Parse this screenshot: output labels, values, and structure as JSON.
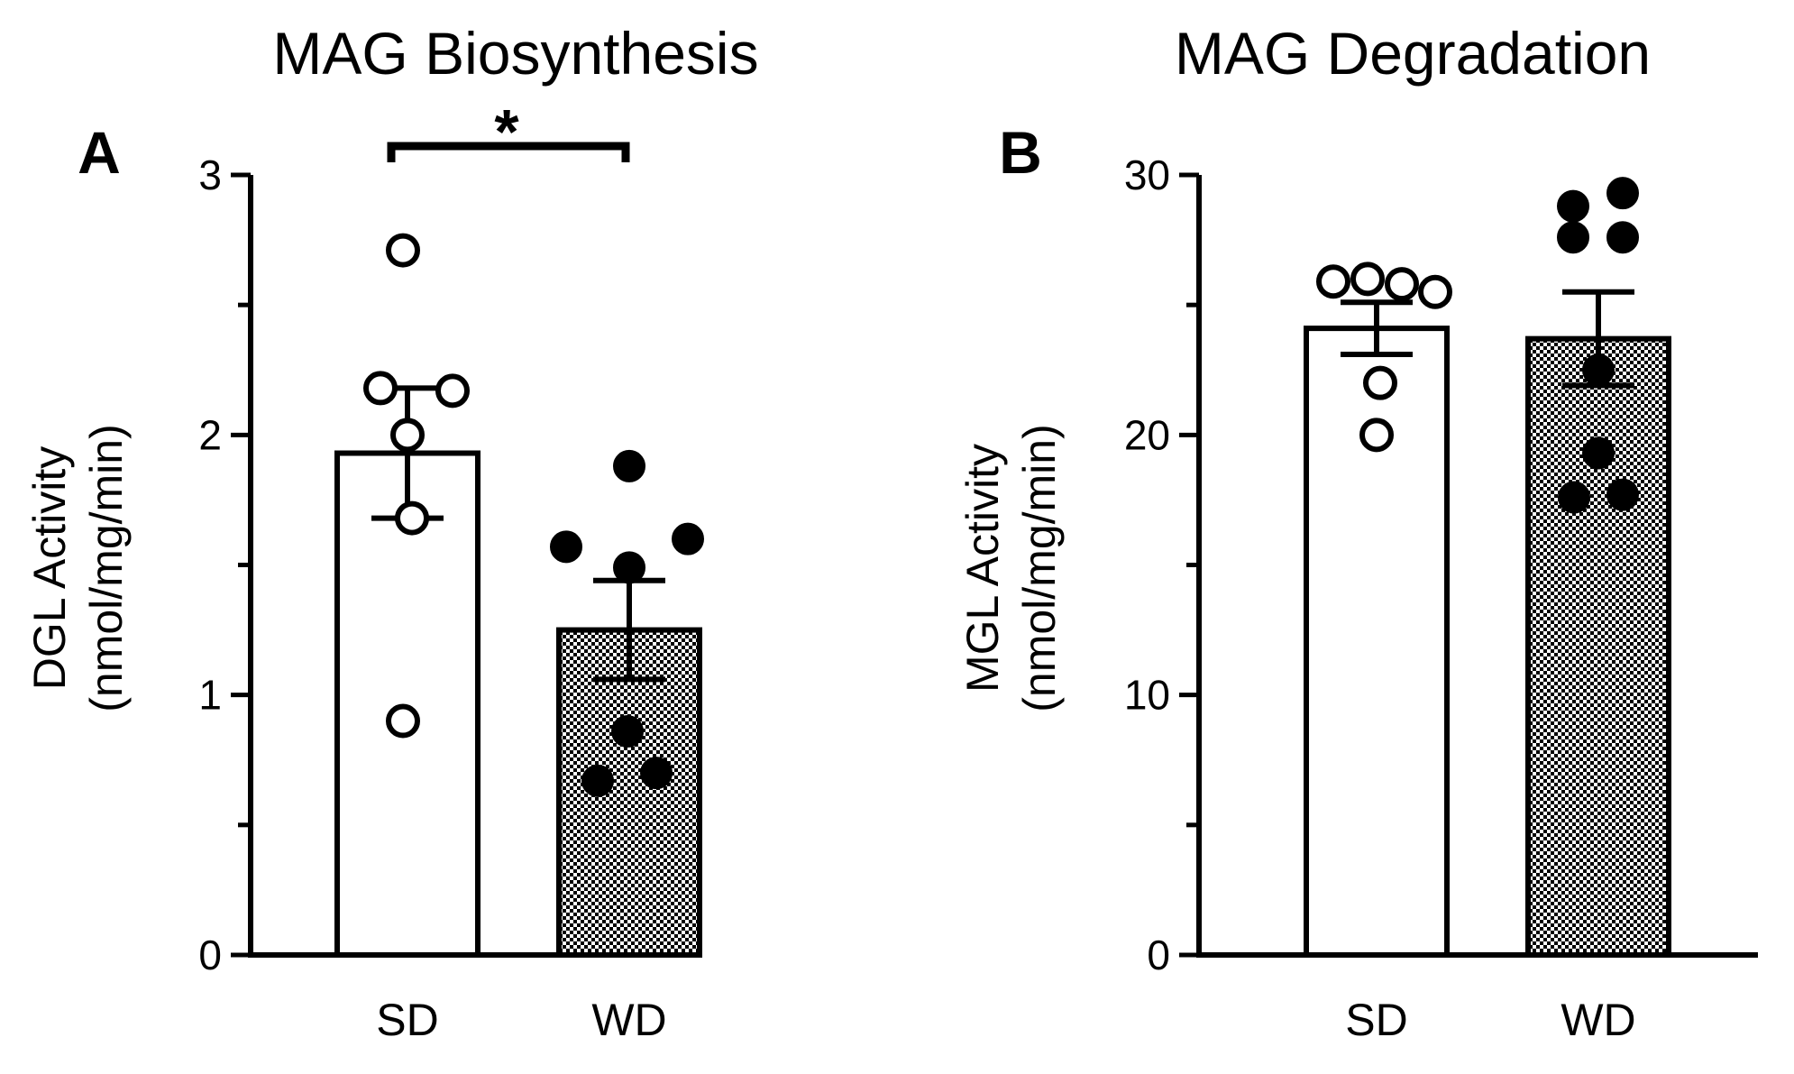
{
  "chart_data": [
    {
      "type": "bar",
      "panel": "A",
      "title": "MAG Biosynthesis",
      "ylabel_line1": "DGL Activity",
      "ylabel_line2": "(nmol/mg/min)",
      "ylim": [
        0,
        3
      ],
      "yticks": [
        0,
        1,
        2,
        3
      ],
      "categories": [
        "SD",
        "WD"
      ],
      "means": [
        1.93,
        1.25
      ],
      "sem": [
        0.25,
        0.19
      ],
      "points": [
        [
          2.71,
          2.18,
          2.17,
          2.0,
          1.68,
          0.9
        ],
        [
          1.88,
          1.6,
          1.57,
          1.49,
          0.86,
          0.7,
          0.67
        ]
      ],
      "significance": "*"
    },
    {
      "type": "bar",
      "panel": "B",
      "title": "MAG Degradation",
      "ylabel_line1": "MGL Activity",
      "ylabel_line2": "(nmol/mg/min)",
      "ylim": [
        0,
        30
      ],
      "yticks": [
        0,
        10,
        20,
        30
      ],
      "categories": [
        "SD",
        "WD"
      ],
      "means": [
        24.1,
        23.7
      ],
      "sem": [
        1.0,
        1.8
      ],
      "points": [
        [
          25.9,
          26.0,
          25.8,
          25.5,
          22.0,
          20.0
        ],
        [
          28.8,
          29.3,
          27.6,
          27.6,
          22.5,
          19.3,
          17.6,
          17.7
        ]
      ],
      "significance": ""
    }
  ]
}
